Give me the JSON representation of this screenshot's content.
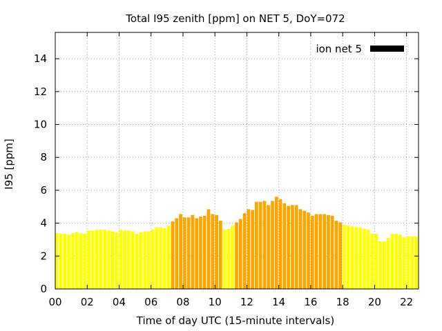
{
  "chart_data": {
    "type": "bar",
    "title": "Total I95 zenith [ppm] on NET 5, DoY=072",
    "xlabel": "Time of day UTC (15-minute intervals)",
    "ylabel": "I95 [ppm]",
    "xlim": [
      0,
      22.75
    ],
    "ylim": [
      0,
      15.6
    ],
    "x_ticks": [
      "00",
      "02",
      "04",
      "06",
      "08",
      "10",
      "12",
      "14",
      "16",
      "18",
      "20",
      "22"
    ],
    "y_ticks": [
      "0",
      "2",
      "4",
      "6",
      "8",
      "10",
      "12",
      "14"
    ],
    "grid": true,
    "legend": {
      "label": "ion net 5",
      "color": "#000000",
      "position": "top-right"
    },
    "colors": {
      "low": "#ffff00",
      "high": "#ffa500"
    },
    "bar_interval_hours": 0.25,
    "series": [
      {
        "x_start": 0,
        "values": [
          3.4,
          3.35,
          3.35,
          3.3,
          3.4,
          3.45,
          3.4,
          3.35,
          3.55,
          3.55,
          3.6,
          3.6,
          3.6,
          3.55,
          3.5,
          3.45,
          3.6,
          3.55,
          3.55,
          3.5,
          3.35,
          3.45,
          3.5,
          3.5,
          3.6,
          3.75,
          3.75,
          3.7,
          3.85,
          4.1,
          4.3,
          4.55,
          4.35,
          4.35,
          4.5,
          4.3,
          4.4,
          4.45,
          4.85,
          4.55,
          4.5,
          4.15,
          3.6,
          3.65,
          3.85,
          4.05,
          4.25,
          4.6,
          4.85,
          4.8,
          5.3,
          5.3,
          5.35,
          5.1,
          5.35,
          5.6,
          5.45,
          5.2,
          5.05,
          5.1,
          5.1,
          4.85,
          4.75,
          4.65,
          4.45,
          4.55,
          4.55,
          4.55,
          4.5,
          4.45,
          4.15,
          4.05,
          3.9,
          3.85,
          3.8,
          3.75,
          3.75,
          3.65,
          3.6,
          3.35,
          3.35,
          2.9,
          2.9,
          3.1,
          3.35,
          3.35,
          3.3,
          3.15,
          3.2,
          3.2,
          3.2
        ],
        "category": [
          "low",
          "low",
          "low",
          "low",
          "low",
          "low",
          "low",
          "low",
          "low",
          "low",
          "low",
          "low",
          "low",
          "low",
          "low",
          "low",
          "low",
          "low",
          "low",
          "low",
          "low",
          "low",
          "low",
          "low",
          "low",
          "low",
          "low",
          "low",
          "low",
          "high",
          "high",
          "high",
          "high",
          "high",
          "high",
          "high",
          "high",
          "high",
          "high",
          "high",
          "high",
          "high",
          "low",
          "low",
          "low",
          "high",
          "high",
          "high",
          "high",
          "high",
          "high",
          "high",
          "high",
          "high",
          "high",
          "high",
          "high",
          "high",
          "high",
          "high",
          "high",
          "high",
          "high",
          "high",
          "high",
          "high",
          "high",
          "high",
          "high",
          "high",
          "high",
          "high",
          "low",
          "low",
          "low",
          "low",
          "low",
          "low",
          "low",
          "low",
          "low",
          "low",
          "low",
          "low",
          "low",
          "low",
          "low",
          "low",
          "low",
          "low",
          "low"
        ]
      }
    ]
  }
}
